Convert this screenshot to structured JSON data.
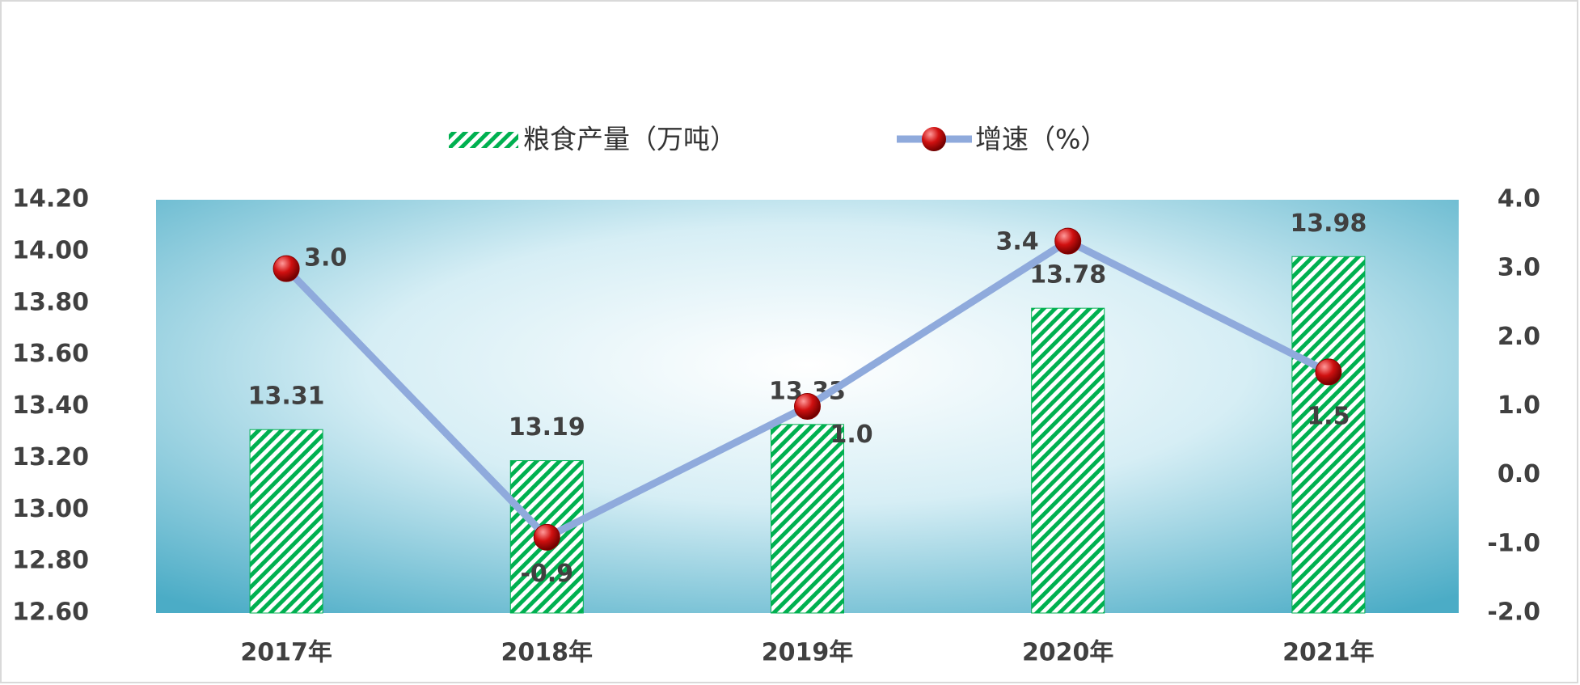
{
  "chart_data": {
    "type": "combo",
    "categories": [
      "2017年",
      "2018年",
      "2019年",
      "2020年",
      "2021年"
    ],
    "series": [
      {
        "name": "粮食产量（万吨）",
        "type": "bar",
        "color": "#00b050",
        "values": [
          13.31,
          13.19,
          13.33,
          13.78,
          13.98
        ]
      },
      {
        "name": "增速（%）",
        "type": "line",
        "axis": "y2",
        "color": "#8faadc",
        "marker_color": "#c00000",
        "values": [
          3.0,
          -0.9,
          1.0,
          3.4,
          1.5
        ],
        "value_labels": [
          "3.0",
          "-0.9",
          "1.0",
          "3.4",
          "1.5"
        ]
      }
    ],
    "ylim": [
      12.6,
      14.2
    ],
    "yticks": [
      {
        "value": 12.6,
        "label": "12.60"
      },
      {
        "value": 12.8,
        "label": "12.80"
      },
      {
        "value": 13.0,
        "label": "13.00"
      },
      {
        "value": 13.2,
        "label": "13.20"
      },
      {
        "value": 13.4,
        "label": "13.40"
      },
      {
        "value": 13.6,
        "label": "13.60"
      },
      {
        "value": 13.8,
        "label": "13.80"
      },
      {
        "value": 14.0,
        "label": "14.00"
      },
      {
        "value": 14.2,
        "label": "14.20"
      }
    ],
    "y2lim": [
      -2,
      4
    ],
    "y2ticks": [
      {
        "value": -2,
        "label": "-2.0"
      },
      {
        "value": -1,
        "label": "-1.0"
      },
      {
        "value": 0,
        "label": "0.0"
      },
      {
        "value": 1,
        "label": "1.0"
      },
      {
        "value": 2,
        "label": "2.0"
      },
      {
        "value": 3,
        "label": "3.0"
      },
      {
        "value": 4,
        "label": "4.0"
      }
    ],
    "legend": "top"
  }
}
